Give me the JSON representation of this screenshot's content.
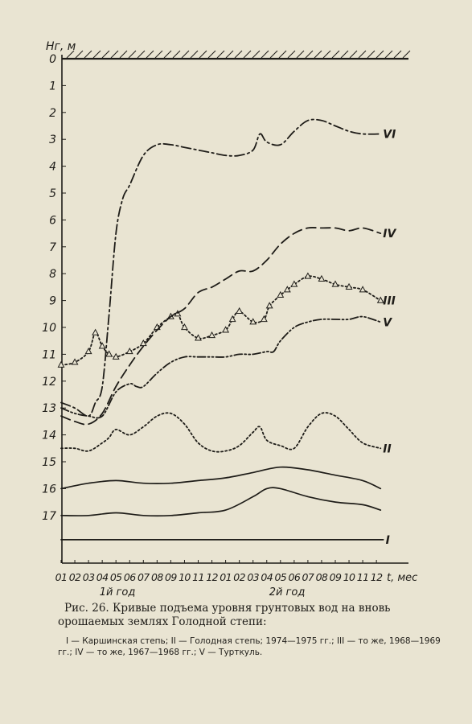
{
  "chart_data": {
    "type": "line",
    "ylabel": "Hг, м",
    "xlabel": "t, мес",
    "y_inverted": true,
    "ylim": [
      0,
      19
    ],
    "yticks": [
      "0",
      "1",
      "2",
      "3",
      "4",
      "5",
      "6",
      "7",
      "8",
      "9",
      "10",
      "11",
      "12",
      "13",
      "14",
      "15",
      "16",
      "17"
    ],
    "x_tick_labels": [
      "01",
      "02",
      "03",
      "04",
      "05",
      "06",
      "07",
      "08",
      "09",
      "10",
      "11",
      "12",
      "01",
      "02",
      "03",
      "04",
      "05",
      "06",
      "07",
      "08",
      "09",
      "10",
      "11",
      "12"
    ],
    "period_labels": [
      "1й год",
      "2й год"
    ],
    "grid": false,
    "series": [
      {
        "name": "I",
        "style": "solid",
        "x": [
          1,
          24.5
        ],
        "y": [
          17.9,
          17.9
        ]
      },
      {
        "name": "II",
        "style": "dotted",
        "x": [
          1,
          2,
          3,
          4,
          4.5,
          5,
          6,
          7,
          8,
          9,
          10,
          11,
          12,
          13,
          14,
          15,
          15.5,
          16,
          17,
          18,
          19,
          20,
          21,
          22,
          23,
          24.3
        ],
        "y": [
          14.5,
          14.5,
          14.6,
          14.3,
          14.1,
          13.8,
          14.0,
          13.7,
          13.3,
          13.2,
          13.6,
          14.3,
          14.6,
          14.6,
          14.4,
          13.9,
          13.7,
          14.2,
          14.4,
          14.5,
          13.7,
          13.2,
          13.3,
          13.8,
          14.3,
          14.5
        ]
      },
      {
        "name": "III",
        "style": "dotted-triangles",
        "x": [
          1,
          2,
          3,
          3.5,
          4,
          4.5,
          5,
          6,
          7,
          8,
          9,
          9.5,
          10,
          11,
          12,
          13,
          13.5,
          14,
          15,
          15.8,
          16.2,
          17,
          17.5,
          18,
          19,
          20,
          21,
          22,
          23,
          24.3
        ],
        "y": [
          11.4,
          11.3,
          10.9,
          10.2,
          10.7,
          11.0,
          11.1,
          10.9,
          10.6,
          10.0,
          9.6,
          9.5,
          10.0,
          10.4,
          10.3,
          10.1,
          9.7,
          9.4,
          9.8,
          9.7,
          9.2,
          8.8,
          8.6,
          8.4,
          8.1,
          8.2,
          8.4,
          8.5,
          8.6,
          9.0
        ]
      },
      {
        "name": "IV",
        "style": "dashed",
        "x": [
          1,
          2,
          3,
          4,
          5,
          6,
          7,
          8,
          9,
          10,
          11,
          12,
          13,
          14,
          15,
          16,
          17,
          18,
          19,
          20,
          21,
          22,
          23,
          24.3
        ],
        "y": [
          13.3,
          13.5,
          13.6,
          13.2,
          12.2,
          11.4,
          10.7,
          10.1,
          9.6,
          9.3,
          8.7,
          8.5,
          8.2,
          7.9,
          7.9,
          7.5,
          6.9,
          6.5,
          6.3,
          6.3,
          6.3,
          6.4,
          6.3,
          6.5
        ]
      },
      {
        "name": "V",
        "style": "dash-dot-dot",
        "x": [
          1,
          2,
          3,
          4,
          5,
          6,
          6.5,
          7,
          8,
          9,
          10,
          11,
          12,
          13,
          14,
          15,
          16,
          16.5,
          17,
          18,
          19,
          20,
          21,
          22,
          23,
          24.3
        ],
        "y": [
          13.0,
          13.2,
          13.3,
          13.3,
          12.4,
          12.1,
          12.2,
          12.2,
          11.7,
          11.3,
          11.1,
          11.1,
          11.1,
          11.1,
          11.0,
          11.0,
          10.9,
          10.9,
          10.5,
          10.0,
          9.8,
          9.7,
          9.7,
          9.7,
          9.6,
          9.8
        ]
      },
      {
        "name": "VI",
        "style": "dash-dot",
        "x": [
          1,
          2,
          3,
          3.5,
          4,
          4.5,
          5,
          5.5,
          6,
          7,
          8,
          9,
          10,
          11,
          12,
          13,
          14,
          15,
          15.5,
          16,
          17,
          18,
          19,
          20,
          21,
          22,
          23,
          24.3
        ],
        "y": [
          12.8,
          13.0,
          13.3,
          12.8,
          12.2,
          9.5,
          6.5,
          5.2,
          4.7,
          3.6,
          3.2,
          3.2,
          3.3,
          3.4,
          3.5,
          3.6,
          3.6,
          3.4,
          2.8,
          3.1,
          3.2,
          2.7,
          2.3,
          2.3,
          2.5,
          2.7,
          2.8,
          2.8
        ]
      },
      {
        "name": "",
        "style": "solid",
        "x": [
          1,
          3,
          5,
          7,
          9,
          11,
          13,
          15,
          17,
          19,
          21,
          23,
          24.3
        ],
        "y": [
          16.0,
          15.8,
          15.7,
          15.8,
          15.8,
          15.7,
          15.6,
          15.4,
          15.2,
          15.3,
          15.5,
          15.7,
          16.0
        ]
      },
      {
        "name": "",
        "style": "solid",
        "x": [
          1,
          3,
          5,
          7,
          9,
          11,
          13,
          15,
          16,
          17,
          19,
          21,
          23,
          24.3
        ],
        "y": [
          17.0,
          17.0,
          16.9,
          17.0,
          17.0,
          16.9,
          16.8,
          16.3,
          16.0,
          16.0,
          16.3,
          16.5,
          16.6,
          16.8
        ]
      }
    ]
  },
  "caption": {
    "figure_title": "Рис. 26. Кривые подъема уровня грунтовых вод на вновь орошаемых землях Голодной степи:",
    "legend": "I — Каршинская степь; II — Голодная степь; 1974—1975 гг.; III — то же, 1968—1969 гг.; IV — то же, 1967—1968 гг.; V — Турткуль."
  }
}
